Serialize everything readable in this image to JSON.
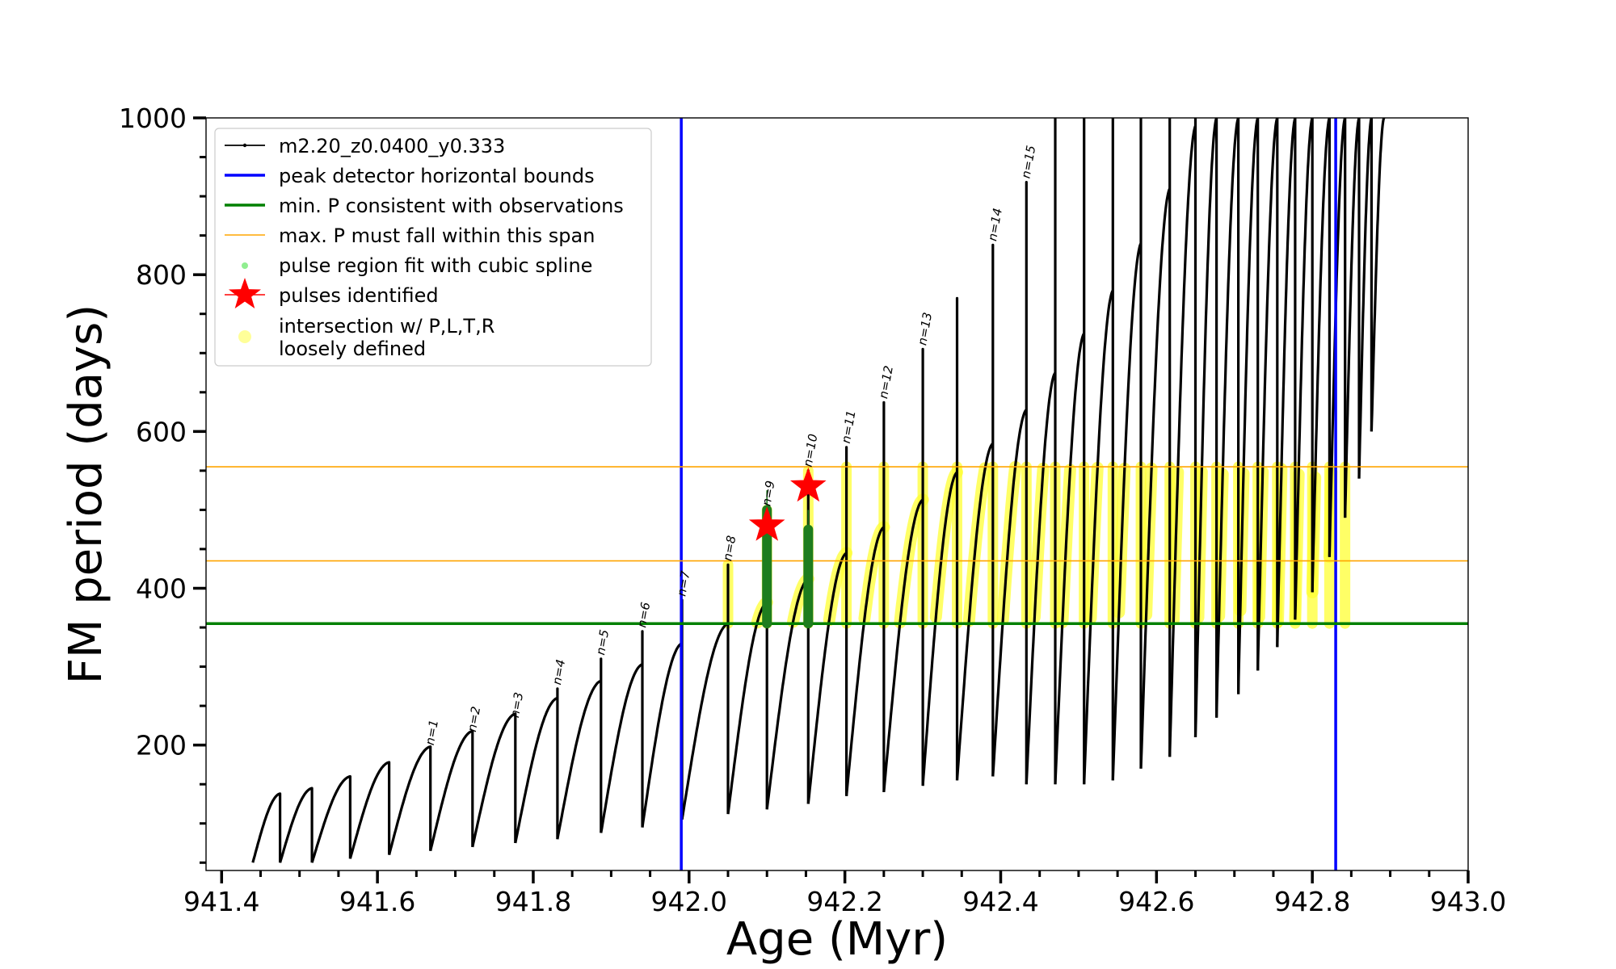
{
  "chart_data": {
    "type": "line",
    "title": "",
    "xlabel": "Age (Myr)",
    "ylabel": "FM period (days)",
    "xlim": [
      941.38,
      943.0
    ],
    "ylim": [
      40,
      1000
    ],
    "x_ticks": [
      {
        "value": 941.4,
        "label": "941.4"
      },
      {
        "value": 941.6,
        "label": "941.6"
      },
      {
        "value": 941.8,
        "label": "941.8"
      },
      {
        "value": 942.0,
        "label": "942.0"
      },
      {
        "value": 942.2,
        "label": "942.2"
      },
      {
        "value": 942.4,
        "label": "942.4"
      },
      {
        "value": 942.6,
        "label": "942.6"
      },
      {
        "value": 942.8,
        "label": "942.8"
      },
      {
        "value": 943.0,
        "label": "943.0"
      }
    ],
    "y_ticks": [
      {
        "value": 200,
        "label": "200"
      },
      {
        "value": 400,
        "label": "400"
      },
      {
        "value": 600,
        "label": "600"
      },
      {
        "value": 800,
        "label": "800"
      },
      {
        "value": 1000,
        "label": "1000"
      }
    ],
    "x_minor_step": 0.05,
    "y_minor_step": 50,
    "grid": false,
    "legend_position": "top-left",
    "legend": [
      {
        "label": "m2.20_z0.0400_y0.333",
        "kind": "line-marker",
        "color": "#000000"
      },
      {
        "label": "peak detector horizontal bounds",
        "kind": "line",
        "color": "#0000ff"
      },
      {
        "label": "min. P consistent with observations",
        "kind": "line",
        "color": "#008000"
      },
      {
        "label": "max. P must fall within this span",
        "kind": "thin-line",
        "color": "#ffa500"
      },
      {
        "label": "pulse region fit with cubic spline",
        "kind": "dot",
        "color": "#90ee90"
      },
      {
        "label": "pulses identified",
        "kind": "star",
        "color": "#ff0000"
      },
      {
        "label": "intersection w/ P,L,T,R",
        "label2": "loosely defined",
        "kind": "dot",
        "color": "#ffff99"
      }
    ],
    "colors": {
      "track": "#000000",
      "bounds": "#0000ff",
      "min_p": "#008000",
      "max_p": "#ffa500",
      "spline": "#1e7d1e",
      "star": "#ff0000",
      "intersection": "#ffff33"
    },
    "vertical_bounds": [
      941.99,
      942.83
    ],
    "min_p_line": 355,
    "max_p_span": [
      435,
      555
    ],
    "series_name": "m2.20_z0.0400_y0.333",
    "pulses": [
      {
        "t0": 941.44,
        "t1": 941.475,
        "start": 50,
        "peak": 138,
        "spike": 110,
        "label": ""
      },
      {
        "t0": 941.475,
        "t1": 941.516,
        "start": 50,
        "peak": 145,
        "spike": 145,
        "label": ""
      },
      {
        "t0": 941.516,
        "t1": 941.565,
        "start": 50,
        "peak": 160,
        "spike": 160,
        "label": ""
      },
      {
        "t0": 941.565,
        "t1": 941.615,
        "start": 55,
        "peak": 178,
        "spike": 178,
        "label": ""
      },
      {
        "t0": 941.615,
        "t1": 941.668,
        "start": 60,
        "peak": 198,
        "spike": 195,
        "label": "n=1"
      },
      {
        "t0": 941.668,
        "t1": 941.722,
        "start": 65,
        "peak": 218,
        "spike": 212,
        "label": "n=2"
      },
      {
        "t0": 941.722,
        "t1": 941.777,
        "start": 70,
        "peak": 240,
        "spike": 230,
        "label": "n=3"
      },
      {
        "t0": 941.777,
        "t1": 941.831,
        "start": 75,
        "peak": 260,
        "spike": 272,
        "label": "n=4"
      },
      {
        "t0": 941.831,
        "t1": 941.887,
        "start": 80,
        "peak": 282,
        "spike": 310,
        "label": "n=5"
      },
      {
        "t0": 941.887,
        "t1": 941.94,
        "start": 88,
        "peak": 303,
        "spike": 345,
        "label": "n=6"
      },
      {
        "t0": 941.94,
        "t1": 941.991,
        "start": 95,
        "peak": 330,
        "spike": 385,
        "label": "n=7"
      },
      {
        "t0": 941.991,
        "t1": 942.05,
        "start": 105,
        "peak": 355,
        "spike": 430,
        "label": "n=8"
      },
      {
        "t0": 942.05,
        "t1": 942.1,
        "start": 112,
        "peak": 382,
        "spike": 500,
        "label": "n=9"
      },
      {
        "t0": 942.1,
        "t1": 942.153,
        "start": 118,
        "peak": 412,
        "spike": 550,
        "label": "n=10"
      },
      {
        "t0": 942.153,
        "t1": 942.202,
        "start": 125,
        "peak": 445,
        "spike": 580,
        "label": "n=11"
      },
      {
        "t0": 942.202,
        "t1": 942.25,
        "start": 135,
        "peak": 478,
        "spike": 637,
        "label": "n=12"
      },
      {
        "t0": 942.25,
        "t1": 942.3,
        "start": 140,
        "peak": 513,
        "spike": 705,
        "label": "n=13"
      },
      {
        "t0": 942.3,
        "t1": 942.344,
        "start": 148,
        "peak": 548,
        "spike": 770,
        "label": ""
      },
      {
        "t0": 942.344,
        "t1": 942.39,
        "start": 155,
        "peak": 585,
        "spike": 838,
        "label": "n=14"
      },
      {
        "t0": 942.39,
        "t1": 942.433,
        "start": 160,
        "peak": 628,
        "spike": 918,
        "label": "n=15"
      },
      {
        "t0": 942.433,
        "t1": 942.47,
        "start": 150,
        "peak": 675,
        "spike": 1000,
        "label": ""
      },
      {
        "t0": 942.47,
        "t1": 942.507,
        "start": 150,
        "peak": 725,
        "spike": 1000,
        "label": ""
      },
      {
        "t0": 942.507,
        "t1": 942.544,
        "start": 150,
        "peak": 780,
        "spike": 1000,
        "label": ""
      },
      {
        "t0": 942.544,
        "t1": 942.58,
        "start": 155,
        "peak": 840,
        "spike": 1000,
        "label": ""
      },
      {
        "t0": 942.58,
        "t1": 942.617,
        "start": 170,
        "peak": 910,
        "spike": 1000,
        "label": ""
      },
      {
        "t0": 942.617,
        "t1": 942.65,
        "start": 185,
        "peak": 990,
        "spike": 1000,
        "label": ""
      },
      {
        "t0": 942.65,
        "t1": 942.677,
        "start": 210,
        "peak": 1000,
        "spike": 1000,
        "label": ""
      },
      {
        "t0": 942.677,
        "t1": 942.705,
        "start": 235,
        "peak": 1000,
        "spike": 1000,
        "label": ""
      },
      {
        "t0": 942.705,
        "t1": 942.73,
        "start": 265,
        "peak": 1000,
        "spike": 1000,
        "label": ""
      },
      {
        "t0": 942.73,
        "t1": 942.755,
        "start": 295,
        "peak": 1000,
        "spike": 1000,
        "label": ""
      },
      {
        "t0": 942.755,
        "t1": 942.778,
        "start": 325,
        "peak": 1000,
        "spike": 1000,
        "label": ""
      },
      {
        "t0": 942.778,
        "t1": 942.8,
        "start": 360,
        "peak": 1000,
        "spike": 1000,
        "label": ""
      },
      {
        "t0": 942.8,
        "t1": 942.822,
        "start": 395,
        "peak": 1000,
        "spike": 1000,
        "label": ""
      },
      {
        "t0": 942.822,
        "t1": 942.842,
        "start": 440,
        "peak": 1000,
        "spike": 1000,
        "label": ""
      },
      {
        "t0": 942.842,
        "t1": 942.86,
        "start": 490,
        "peak": 1000,
        "spike": 1000,
        "label": ""
      },
      {
        "t0": 942.86,
        "t1": 942.876,
        "start": 540,
        "peak": 1000,
        "spike": 1000,
        "label": ""
      },
      {
        "t0": 942.876,
        "t1": 942.892,
        "start": 600,
        "peak": 1000,
        "spike": 1000,
        "label": ""
      }
    ],
    "pulses_identified": [
      {
        "x": 942.1,
        "y": 480
      },
      {
        "x": 942.153,
        "y": 530
      }
    ],
    "spline_fits": [
      {
        "x": 942.1,
        "y_min": 355,
        "y_max": 525
      },
      {
        "x": 942.153,
        "y_min": 355,
        "y_max": 500
      }
    ]
  }
}
